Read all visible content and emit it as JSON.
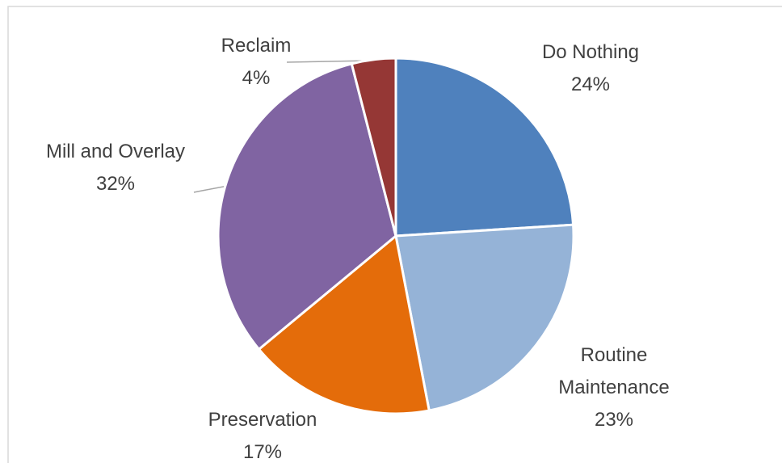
{
  "chart_data": {
    "type": "pie",
    "categories": [
      "Do Nothing",
      "Routine Maintenance",
      "Preservation",
      "Mill and Overlay",
      "Reclaim"
    ],
    "values": [
      24,
      23,
      17,
      32,
      4
    ],
    "value_labels": [
      "24%",
      "23%",
      "17%",
      "32%",
      "4%"
    ],
    "colors": [
      "#4f81bd",
      "#95b3d7",
      "#e46c0a",
      "#8064a2",
      "#953735"
    ]
  }
}
